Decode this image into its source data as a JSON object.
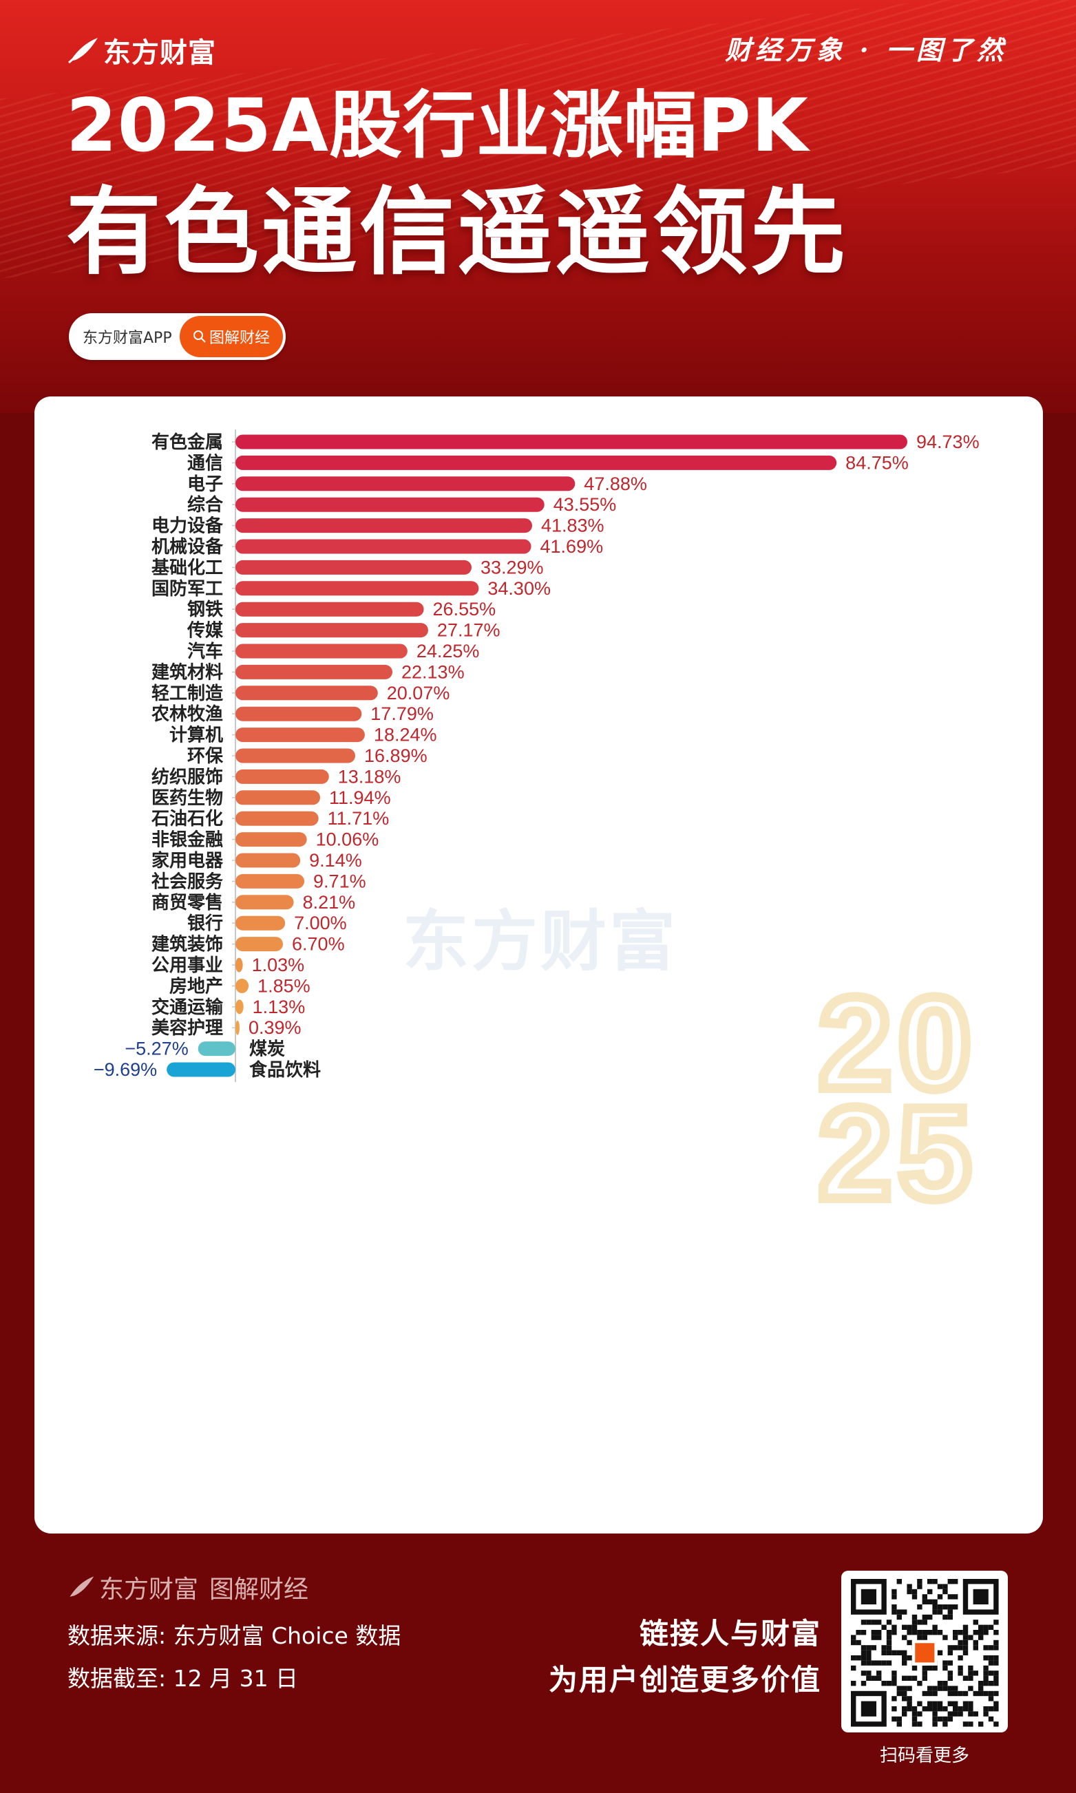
{
  "header": {
    "brand": "东方财富",
    "slogan": "财经万象 · 一图了然",
    "title_line1": "2025A股行业涨幅PK",
    "title_line2": "有色通信遥遥领先",
    "pill_app": "东方财富APP",
    "pill_button": "图解财经"
  },
  "colors": {
    "positive_top": "#d21f45",
    "positive_bottom": "#f0a44a",
    "negative_1": "#5fc2c8",
    "negative_2": "#1aa4d6",
    "label_positive": "#c0272d",
    "label_negative": "#1d3f8f"
  },
  "chart_data": {
    "type": "bar",
    "orientation": "horizontal",
    "categories": [
      "有色金属",
      "通信",
      "电子",
      "综合",
      "电力设备",
      "机械设备",
      "基础化工",
      "国防军工",
      "钢铁",
      "传媒",
      "汽车",
      "建筑材料",
      "轻工制造",
      "农林牧渔",
      "计算机",
      "环保",
      "纺织服饰",
      "医药生物",
      "石油石化",
      "非银金融",
      "家用电器",
      "社会服务",
      "商贸零售",
      "银行",
      "建筑装饰",
      "公用事业",
      "房地产",
      "交通运输",
      "美容护理",
      "煤炭",
      "食品饮料"
    ],
    "values": [
      94.73,
      84.75,
      47.88,
      43.55,
      41.83,
      41.69,
      33.29,
      34.3,
      26.55,
      27.17,
      24.25,
      22.13,
      20.07,
      17.79,
      18.24,
      16.89,
      13.18,
      11.94,
      11.71,
      10.06,
      9.14,
      9.71,
      8.21,
      7.0,
      6.7,
      1.03,
      1.85,
      1.13,
      0.39,
      -5.27,
      -9.69
    ],
    "labels": [
      "94.73%",
      "84.75%",
      "47.88%",
      "43.55%",
      "41.83%",
      "41.69%",
      "33.29%",
      "34.30%",
      "26.55%",
      "27.17%",
      "24.25%",
      "22.13%",
      "20.07%",
      "17.79%",
      "18.24%",
      "16.89%",
      "13.18%",
      "11.94%",
      "11.71%",
      "10.06%",
      "9.14%",
      "9.71%",
      "8.21%",
      "7.00%",
      "6.70%",
      "1.03%",
      "1.85%",
      "1.13%",
      "0.39%",
      "−5.27%",
      "−9.69%"
    ],
    "unit": "%",
    "watermark": "东方财富",
    "year_mark": "2025"
  },
  "footer": {
    "brand": "东方财富",
    "brand_sub": "图解财经",
    "source": "数据来源: 东方财富 Choice 数据",
    "date": "数据截至: 12 月 31 日",
    "slogan1": "链接人与财富",
    "slogan2": "为用户创造更多价值",
    "qr_caption": "扫码看更多"
  }
}
